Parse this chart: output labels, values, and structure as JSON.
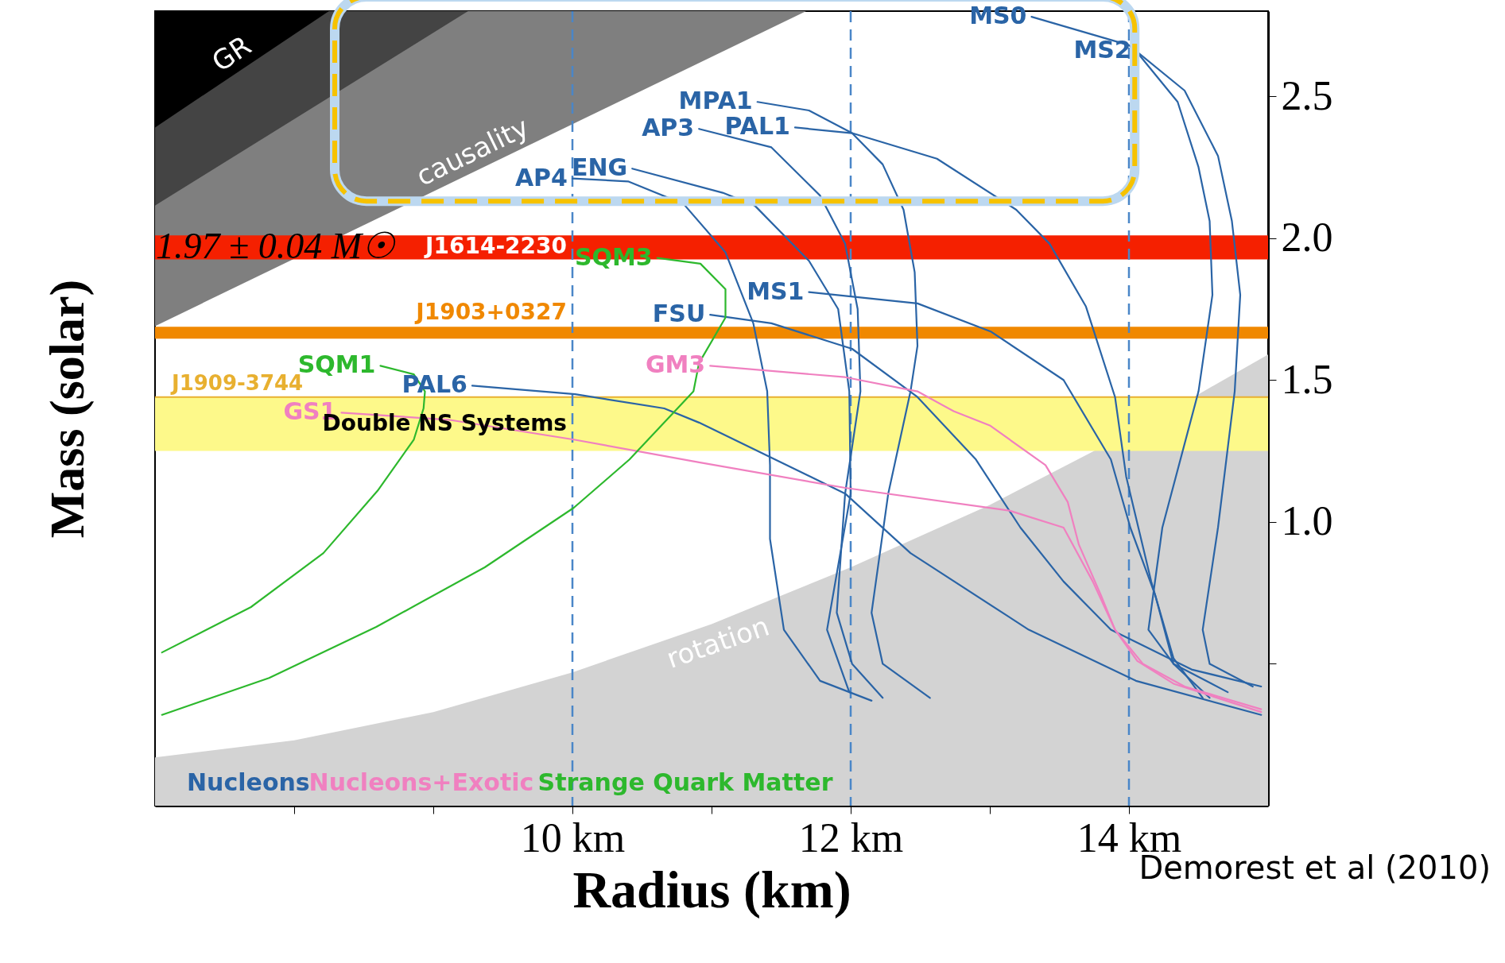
{
  "chart_data": {
    "type": "line",
    "xlabel": "Radius (km)",
    "ylabel": "Mass (solar)",
    "xlim": [
      7,
      15
    ],
    "ylim": [
      0,
      2.8
    ],
    "xticks": [
      {
        "value": 8,
        "label": null
      },
      {
        "value": 9,
        "label": null
      },
      {
        "value": 10,
        "label": "10 km"
      },
      {
        "value": 11,
        "label": null
      },
      {
        "value": 12,
        "label": "12 km"
      },
      {
        "value": 13,
        "label": null
      },
      {
        "value": 14,
        "label": "14 km"
      }
    ],
    "yticks": [
      {
        "value": 0.5,
        "label": null
      },
      {
        "value": 1,
        "label": "1.0"
      },
      {
        "value": 1.5,
        "label": "1.5"
      },
      {
        "value": 2,
        "label": "2.0"
      },
      {
        "value": 2.5,
        "label": "2.5"
      }
    ],
    "series": [
      {
        "name": "AP4",
        "color": "#2a64a6",
        "x": [
          10.0,
          10.4,
          10.8,
          11.1,
          11.3,
          11.4,
          11.42,
          11.42,
          11.52,
          11.78,
          12.15
        ],
        "values": [
          2.21,
          2.2,
          2.12,
          1.95,
          1.7,
          1.46,
          1.2,
          0.94,
          0.62,
          0.44,
          0.37
        ]
      },
      {
        "name": "AP3",
        "color": "#2a64a6",
        "x": [
          10.91,
          11.43,
          11.78,
          11.96,
          12.05,
          12.07,
          11.96,
          11.9,
          12.01,
          12.23
        ],
        "values": [
          2.385,
          2.32,
          2.15,
          1.98,
          1.75,
          1.46,
          1.1,
          0.68,
          0.5,
          0.38
        ]
      },
      {
        "name": "ENG",
        "color": "#2a64a6",
        "x": [
          10.43,
          11.08,
          11.31,
          11.7,
          11.91,
          11.99,
          12.0,
          11.83,
          11.99
        ],
        "values": [
          2.245,
          2.16,
          2.115,
          1.92,
          1.75,
          1.46,
          1.1,
          0.62,
          0.4
        ]
      },
      {
        "name": "MPA1",
        "color": "#2a64a6",
        "x": [
          11.33,
          11.7,
          12.01,
          12.23,
          12.38,
          12.46,
          12.48,
          12.43,
          12.27,
          12.15,
          12.23,
          12.57
        ],
        "values": [
          2.48,
          2.45,
          2.37,
          2.26,
          2.1,
          1.88,
          1.62,
          1.46,
          1.1,
          0.68,
          0.5,
          0.38
        ]
      },
      {
        "name": "PAL1",
        "color": "#2a64a6",
        "x": [
          11.6,
          12.01,
          12.62,
          13.19,
          13.43,
          13.69,
          13.9,
          13.98,
          14.16,
          14.32,
          14.53
        ],
        "values": [
          2.39,
          2.37,
          2.28,
          2.1,
          1.98,
          1.76,
          1.44,
          1.16,
          0.79,
          0.52,
          0.38
        ]
      },
      {
        "name": "MS0",
        "color": "#2a64a6",
        "x": [
          13.3,
          14.0,
          14.4,
          14.64,
          14.74,
          14.8,
          14.76,
          14.64,
          14.53,
          14.58,
          14.89
        ],
        "values": [
          2.78,
          2.68,
          2.52,
          2.29,
          2.06,
          1.8,
          1.46,
          0.98,
          0.62,
          0.5,
          0.42
        ]
      },
      {
        "name": "MS2",
        "color": "#2a64a6",
        "x": [
          14.05,
          14.35,
          14.5,
          14.58,
          14.6,
          14.5,
          14.24,
          14.14,
          14.32,
          14.71
        ],
        "values": [
          2.66,
          2.48,
          2.25,
          2.06,
          1.8,
          1.46,
          0.98,
          0.62,
          0.5,
          0.4
        ]
      },
      {
        "name": "MS1",
        "color": "#2a64a6",
        "x": [
          11.7,
          12.48,
          13.01,
          13.53,
          13.87,
          14.01,
          14.19,
          14.32,
          14.58
        ],
        "values": [
          1.81,
          1.77,
          1.67,
          1.5,
          1.22,
          0.98,
          0.74,
          0.5,
          0.38
        ]
      },
      {
        "name": "FSU",
        "color": "#2a64a6",
        "x": [
          10.99,
          11.43,
          12.01,
          12.48,
          12.9,
          13.22,
          13.53,
          13.87,
          14.45,
          14.95
        ],
        "values": [
          1.73,
          1.7,
          1.61,
          1.44,
          1.22,
          0.98,
          0.79,
          0.62,
          0.48,
          0.42
        ]
      },
      {
        "name": "PAL6",
        "color": "#2a64a6",
        "x": [
          9.28,
          10.02,
          10.66,
          10.91,
          11.96,
          12.43,
          13.28,
          14.05,
          14.95
        ],
        "values": [
          1.48,
          1.45,
          1.4,
          1.35,
          1.1,
          0.89,
          0.62,
          0.44,
          0.32
        ]
      },
      {
        "name": "GM3",
        "color": "#f080c0",
        "x": [
          10.99,
          11.96,
          12.48,
          12.74,
          13.0,
          13.4,
          13.56,
          13.64,
          13.8,
          13.9,
          14.06,
          14.32,
          14.95
        ],
        "values": [
          1.55,
          1.51,
          1.46,
          1.39,
          1.34,
          1.2,
          1.07,
          0.92,
          0.74,
          0.62,
          0.51,
          0.43,
          0.33
        ]
      },
      {
        "name": "GS1",
        "color": "#f080c0",
        "x": [
          8.34,
          9.11,
          10.01,
          10.91,
          11.96,
          13.14,
          13.53,
          13.74,
          13.9,
          14.1,
          14.4,
          14.95
        ],
        "values": [
          1.385,
          1.36,
          1.29,
          1.21,
          1.12,
          1.04,
          0.98,
          0.79,
          0.62,
          0.5,
          0.42,
          0.34
        ]
      },
      {
        "name": "SQM1",
        "color": "#2db82d",
        "x": [
          8.62,
          8.86,
          8.94,
          8.93,
          8.86,
          8.6,
          8.21,
          7.69,
          7.05
        ],
        "values": [
          1.55,
          1.52,
          1.46,
          1.4,
          1.29,
          1.11,
          0.89,
          0.7,
          0.54
        ]
      },
      {
        "name": "SQM3",
        "color": "#2db82d",
        "x": [
          10.61,
          10.92,
          11.1,
          11.1,
          10.91,
          10.87,
          10.41,
          10.01,
          9.37,
          8.59,
          7.82,
          7.05
        ],
        "values": [
          1.93,
          1.91,
          1.82,
          1.72,
          1.56,
          1.46,
          1.22,
          1.05,
          0.84,
          0.63,
          0.45,
          0.32
        ]
      },
      {
        "type": "area",
        "name": "causality",
        "color": "#7f7f7f",
        "x": [
          7,
          11.68
        ],
        "values": [
          1.69,
          2.8
        ]
      },
      {
        "type": "area",
        "color": "#444444",
        "x": [
          7,
          9.25
        ],
        "values": [
          2.115,
          2.8
        ]
      },
      {
        "type": "area",
        "name": "GR",
        "color": "#000000",
        "x": [
          7,
          8.25
        ],
        "values": [
          2.39,
          2.8
        ]
      },
      {
        "type": "area",
        "name": "rotation",
        "color": "#d3d3d3",
        "x": [
          7,
          8,
          9,
          10,
          11,
          12,
          13,
          13.75,
          14.5,
          15
        ],
        "values": [
          0.17,
          0.23,
          0.33,
          0.47,
          0.64,
          0.84,
          1.06,
          1.25,
          1.45,
          1.59
        ]
      }
    ],
    "bands": [
      {
        "axis": "y",
        "from": 1.925,
        "to": 2.01,
        "label": "J1614-2230",
        "color": "#f52000"
      },
      {
        "axis": "y",
        "from": 1.646,
        "to": 1.688,
        "label": "J1903+0327",
        "color": "#f08800"
      },
      {
        "axis": "y",
        "from": 1.25,
        "to": 1.44,
        "label": "Double NS Systems",
        "color": "#fdf98a"
      }
    ],
    "ref_lines": [
      {
        "axis": "y",
        "value": 1.44,
        "label": "J1909-3744",
        "color": "#e8b030"
      },
      {
        "axis": "x",
        "value": 10,
        "color": "#4a86c8",
        "line_style": "dashed"
      },
      {
        "axis": "x",
        "value": 12,
        "color": "#4a86c8",
        "line_style": "dashed"
      },
      {
        "axis": "x",
        "value": 14,
        "color": "#4a86c8",
        "line_style": "dashed"
      }
    ],
    "annotations": [
      "Nucleons",
      "Nucleons+Exotic",
      "Strange Quark Matter",
      "1.97 ± 0.04 M☉",
      "Demorest et al (2010)"
    ]
  }
}
